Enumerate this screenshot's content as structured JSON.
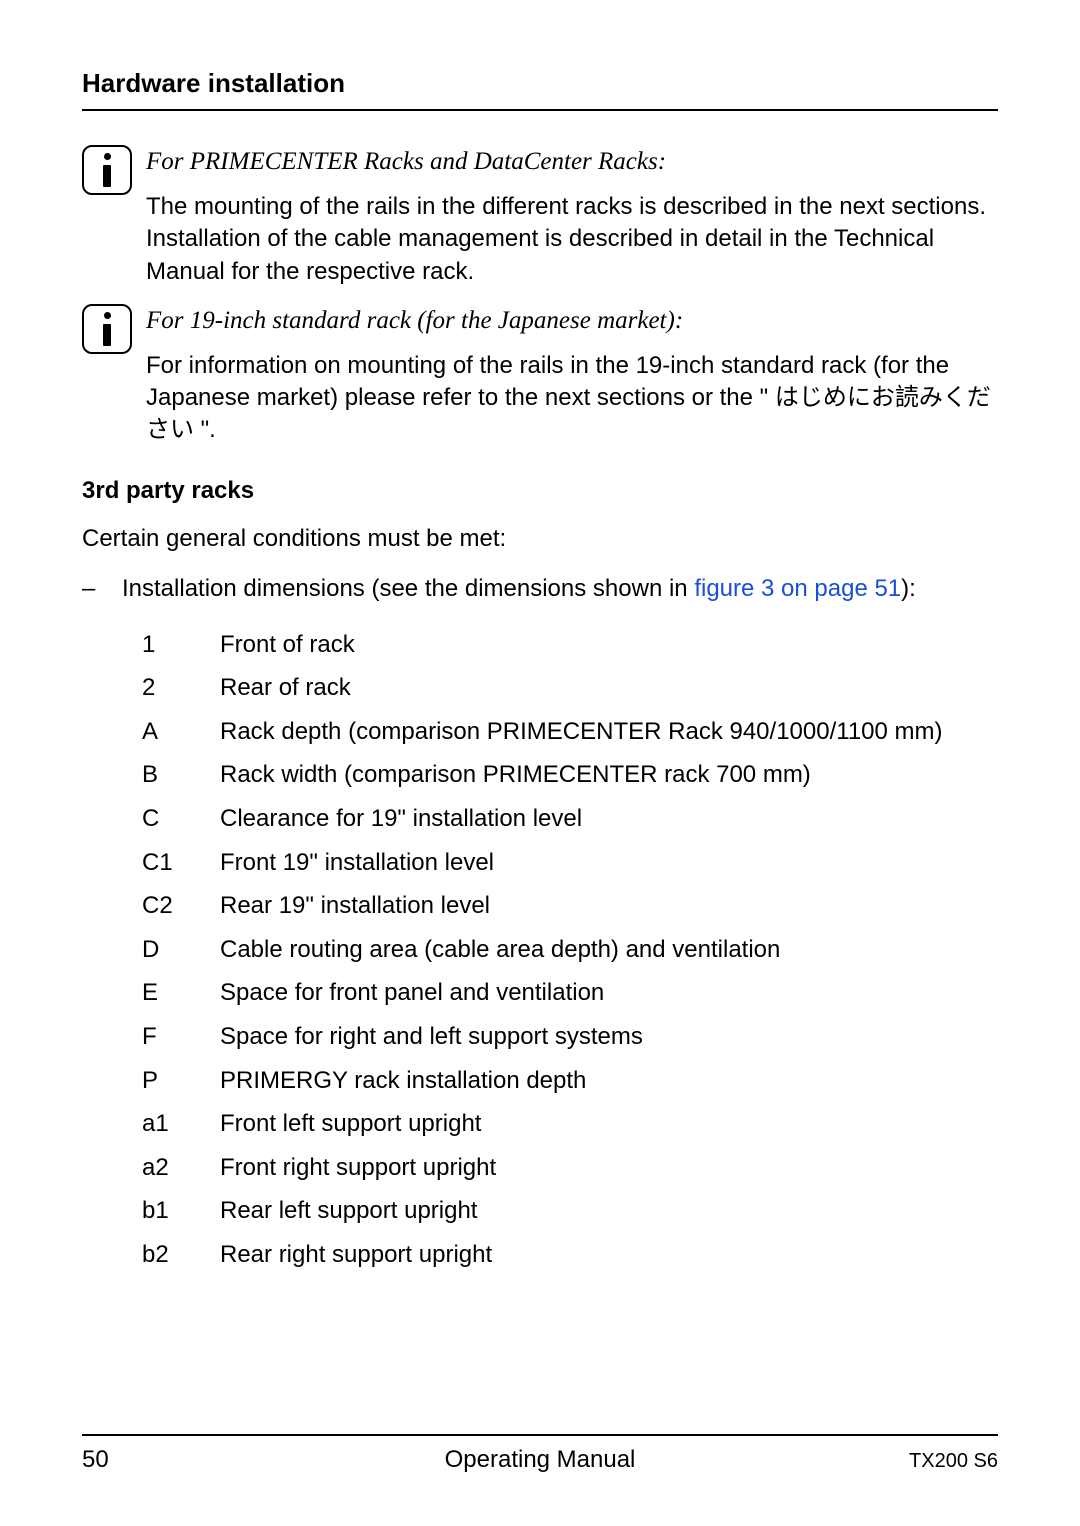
{
  "header": {
    "title": "Hardware installation"
  },
  "info1": {
    "italic": "For PRIMECENTER Racks and DataCenter Racks:",
    "body": "The mounting of the rails in the different racks is described in the next sections. Installation of the cable management is described in detail in the Technical Manual for the respective rack."
  },
  "info2": {
    "italic": "For 19-inch standard rack (for the Japanese market):",
    "body_prefix": "For information on mounting of the rails in the 19-inch standard rack (for the Japanese market) please refer to the next sections or the \" はじめにお読みください \"."
  },
  "subheading": "3rd party racks",
  "conditions_line": "Certain general conditions must be met:",
  "bullet": {
    "dash": "–",
    "text_prefix": "Installation dimensions (see the dimensions shown in ",
    "link_text": "figure 3 on page 51",
    "text_suffix": "):"
  },
  "dims": [
    {
      "k": "1",
      "v": "Front of rack"
    },
    {
      "k": "2",
      "v": "Rear of rack"
    },
    {
      "k": "A",
      "v": "Rack depth (comparison PRIMECENTER Rack 940/1000/1100 mm)"
    },
    {
      "k": "B",
      "v": "Rack width (comparison PRIMECENTER rack 700 mm)"
    },
    {
      "k": "C",
      "v": "Clearance for 19\" installation level"
    },
    {
      "k": "C1",
      "v": "Front 19\" installation level"
    },
    {
      "k": "C2",
      "v": "Rear 19\" installation level"
    },
    {
      "k": "D",
      "v": "Cable routing area (cable area depth) and ventilation"
    },
    {
      "k": "E",
      "v": "Space for front panel and ventilation"
    },
    {
      "k": "F",
      "v": "Space for right and left support systems"
    },
    {
      "k": "P",
      "v": "PRIMERGY rack installation depth"
    },
    {
      "k": "a1",
      "v": "Front left support upright"
    },
    {
      "k": "a2",
      "v": "Front right support upright"
    },
    {
      "k": "b1",
      "v": "Rear left support upright"
    },
    {
      "k": "b2",
      "v": "Rear right support upright"
    }
  ],
  "footer": {
    "page": "50",
    "center": "Operating Manual",
    "right": "TX200 S6"
  },
  "colors": {
    "link": "#1a4fd6",
    "text": "#000000",
    "bg": "#ffffff",
    "rule": "#000000"
  }
}
